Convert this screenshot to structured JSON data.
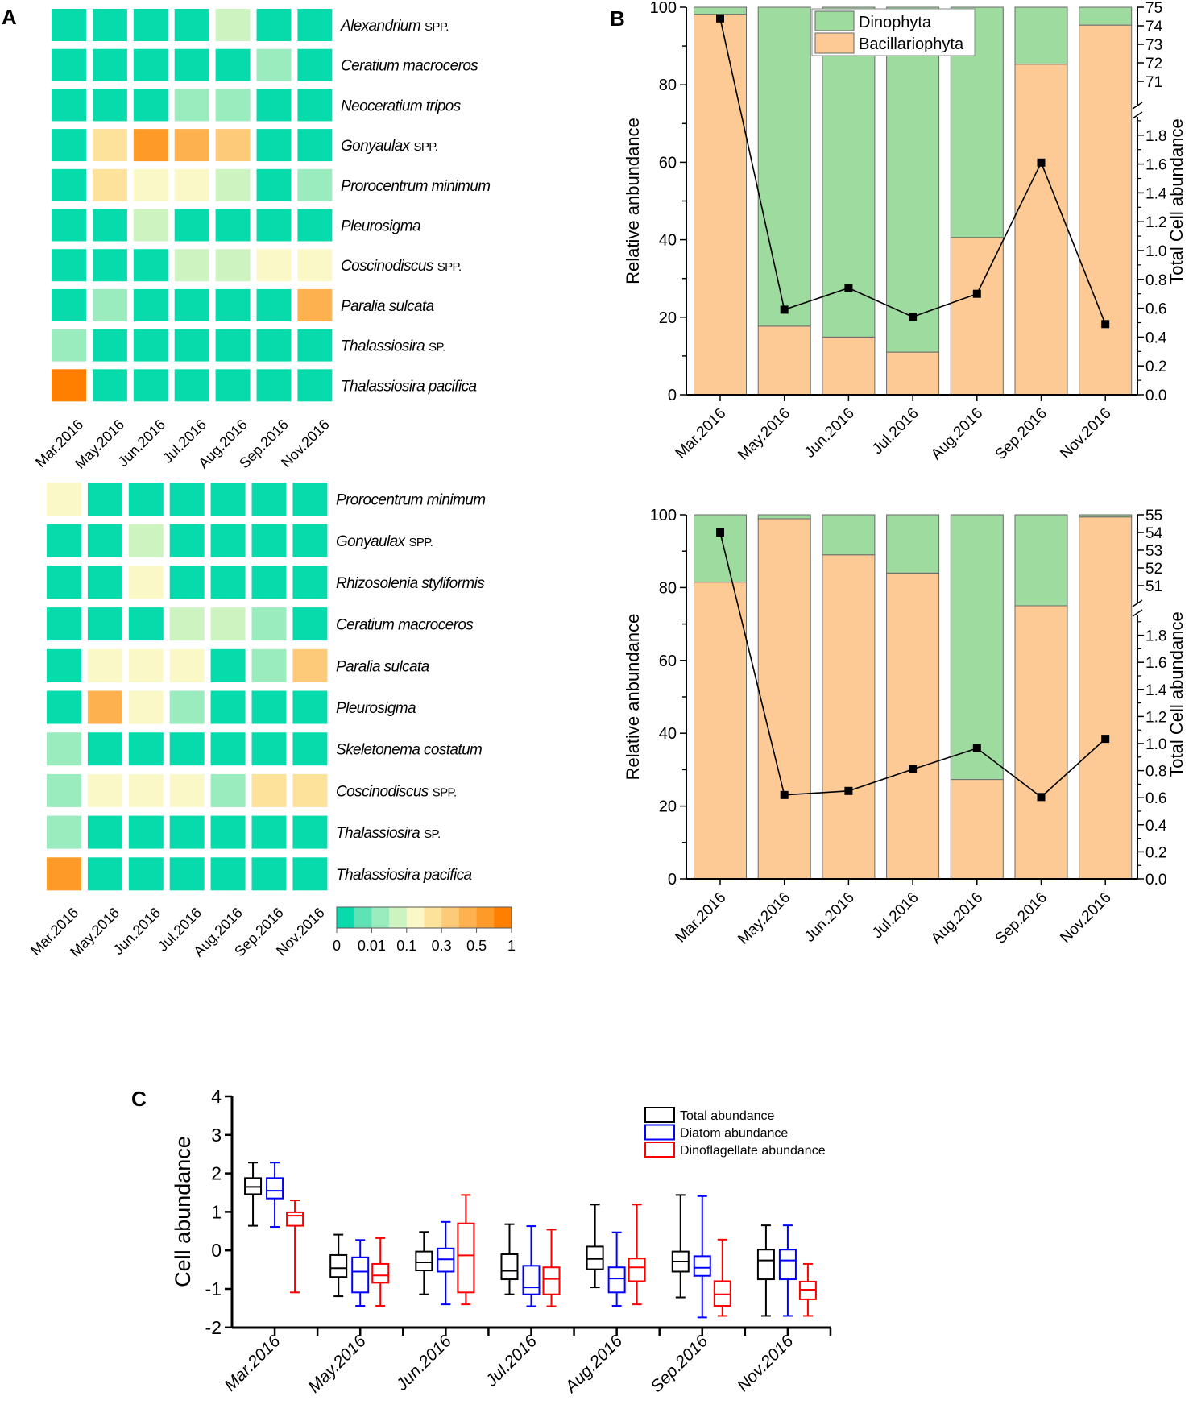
{
  "panel_labels": {
    "a": "A",
    "b": "B",
    "c": "C"
  },
  "palette": [
    "#07dbab",
    "#5fe3b5",
    "#9aebbd",
    "#cdf3c1",
    "#fbf8c7",
    "#fde29c",
    "#fdca79",
    "#fdb24f",
    "#fe9a28",
    "#ff8000"
  ],
  "chart_data": [
    {
      "type": "heatmap",
      "value_kind": "color level (0-9) on the shared colour scale",
      "columns": [
        "Mar.2016",
        "May.2016",
        "Jun.2016",
        "Jul.2016",
        "Aug.2016",
        "Sep.2016",
        "Nov.2016"
      ],
      "rows": [
        {
          "name": "Alexandrium",
          "suffix": "SPP.",
          "values": [
            0,
            0,
            0,
            0,
            3,
            0,
            0
          ]
        },
        {
          "name": "Ceratium macroceros",
          "suffix": "",
          "values": [
            0,
            0,
            0,
            0,
            0,
            2,
            0
          ]
        },
        {
          "name": "Neoceratium tripos",
          "suffix": "",
          "values": [
            0,
            0,
            0,
            2,
            2,
            0,
            0
          ]
        },
        {
          "name": "Gonyaulax",
          "suffix": "SPP.",
          "values": [
            0,
            5,
            8,
            7,
            6,
            0,
            0
          ]
        },
        {
          "name": "Prorocentrum minimum",
          "suffix": "",
          "values": [
            0,
            5,
            4,
            4,
            3,
            0,
            2
          ]
        },
        {
          "name": "Pleurosigma",
          "suffix": "",
          "values": [
            0,
            0,
            3,
            0,
            0,
            0,
            0
          ]
        },
        {
          "name": "Coscinodiscus",
          "suffix": "SPP.",
          "values": [
            0,
            0,
            0,
            3,
            3,
            4,
            4
          ]
        },
        {
          "name": "Paralia sulcata",
          "suffix": "",
          "values": [
            0,
            2,
            0,
            0,
            0,
            0,
            7
          ]
        },
        {
          "name": "Thalassiosira",
          "suffix": "SP.",
          "values": [
            2,
            0,
            0,
            0,
            0,
            0,
            0
          ]
        },
        {
          "name": "Thalassiosira pacifica",
          "suffix": "",
          "values": [
            9,
            0,
            0,
            0,
            0,
            0,
            0
          ]
        }
      ]
    },
    {
      "type": "heatmap",
      "value_kind": "color level (0-9) on the shared colour scale",
      "columns": [
        "Mar.2016",
        "May.2016",
        "Jun.2016",
        "Jul.2016",
        "Aug.2016",
        "Sep.2016",
        "Nov.2016"
      ],
      "rows": [
        {
          "name": "Prorocentrum minimum",
          "suffix": "",
          "values": [
            4,
            0,
            0,
            0,
            0,
            0,
            0
          ]
        },
        {
          "name": "Gonyaulax",
          "suffix": "SPP.",
          "values": [
            0,
            0,
            3,
            0,
            0,
            0,
            0
          ]
        },
        {
          "name": "Rhizosolenia styliformis",
          "suffix": "",
          "values": [
            0,
            0,
            4,
            0,
            0,
            0,
            0
          ]
        },
        {
          "name": "Ceratium macroceros",
          "suffix": "",
          "values": [
            0,
            0,
            0,
            3,
            3,
            2,
            0
          ]
        },
        {
          "name": "Paralia sulcata",
          "suffix": "",
          "values": [
            0,
            4,
            4,
            4,
            0,
            2,
            6
          ]
        },
        {
          "name": "Pleurosigma",
          "suffix": "",
          "values": [
            0,
            7,
            4,
            2,
            0,
            0,
            0
          ]
        },
        {
          "name": "Skeletonema costatum",
          "suffix": "",
          "values": [
            2,
            0,
            0,
            0,
            0,
            0,
            0
          ]
        },
        {
          "name": "Coscinodiscus",
          "suffix": "SPP.",
          "values": [
            2,
            4,
            4,
            4,
            2,
            5,
            5
          ]
        },
        {
          "name": "Thalassiosira",
          "suffix": "SP.",
          "values": [
            2,
            0,
            0,
            0,
            0,
            0,
            0
          ]
        },
        {
          "name": "Thalassiosira pacifica",
          "suffix": "",
          "values": [
            8,
            0,
            0,
            0,
            0,
            0,
            0
          ]
        }
      ],
      "colorbar": {
        "tick_labels": [
          "0",
          "0.01",
          "0.1",
          "0.3",
          "0.5",
          "1"
        ],
        "levels": 10
      }
    },
    {
      "type": "bar",
      "stacked": true,
      "categories": [
        "Mar.2016",
        "May.2016",
        "Jun.2016",
        "Jul.2016",
        "Aug.2016",
        "Sep.2016",
        "Nov.2016"
      ],
      "series": [
        {
          "name": "Bacillariophyta",
          "color": "#fdca96",
          "values": [
            98.2,
            17.7,
            14.9,
            11.0,
            40.6,
            85.3,
            95.4
          ]
        },
        {
          "name": "Dinophyta",
          "color": "#9edb9e",
          "values": [
            1.8,
            82.3,
            85.1,
            89.0,
            59.4,
            14.7,
            4.6
          ]
        }
      ],
      "line": {
        "axis": "right",
        "values": [
          74.4,
          0.59,
          0.74,
          0.54,
          0.7,
          1.61,
          0.49
        ]
      },
      "ylabel": "Relative anbundance",
      "ylim": [
        0,
        100
      ],
      "yticks": [
        "0",
        "20",
        "40",
        "60",
        "80",
        "100"
      ],
      "y2label": "Total Cell abundance",
      "y2_broken": true,
      "y2_lower_ticks": [
        "0.0",
        "0.2",
        "0.4",
        "0.6",
        "0.8",
        "1.0",
        "1.2",
        "1.4",
        "1.6",
        "1.8"
      ],
      "y2_upper_ticks": [
        "71",
        "72",
        "73",
        "74",
        "75"
      ],
      "legend": [
        "Dinophyta",
        "Bacillariophyta"
      ],
      "legend_position": "top-center"
    },
    {
      "type": "bar",
      "stacked": true,
      "categories": [
        "Mar.2016",
        "May.2016",
        "Jun.2016",
        "Jul.2016",
        "Aug.2016",
        "Sep.2016",
        "Nov.2016"
      ],
      "series": [
        {
          "name": "Bacillariophyta",
          "color": "#fdca96",
          "values": [
            81.5,
            98.9,
            89.0,
            84.0,
            27.3,
            75.0,
            99.4
          ]
        },
        {
          "name": "Dinophyta",
          "color": "#9edb9e",
          "values": [
            18.5,
            1.1,
            11.0,
            16.0,
            72.7,
            25.0,
            0.6
          ]
        }
      ],
      "line": {
        "axis": "right",
        "values": [
          54.0,
          0.62,
          0.65,
          0.81,
          0.965,
          0.605,
          1.035
        ]
      },
      "ylabel": "Relative anbundance",
      "ylim": [
        0,
        100
      ],
      "yticks": [
        "0",
        "20",
        "40",
        "60",
        "80",
        "100"
      ],
      "y2label": "Total Cell abundance",
      "y2_broken": true,
      "y2_lower_ticks": [
        "0.0",
        "0.2",
        "0.4",
        "0.6",
        "0.8",
        "1.0",
        "1.2",
        "1.4",
        "1.6",
        "1.8"
      ],
      "y2_upper_ticks": [
        "51",
        "52",
        "53",
        "54",
        "55"
      ]
    },
    {
      "type": "boxplot",
      "categories": [
        "Mar.2016",
        "May.2016",
        "Jun.2016",
        "Jul.2016",
        "Aug.2016",
        "Sep.2016",
        "Nov.2016"
      ],
      "ylabel": "Cell abundance",
      "ylim": [
        -2,
        4
      ],
      "yticks": [
        "-2",
        "-1",
        "0",
        "1",
        "2",
        "3",
        "4"
      ],
      "legend_position": "top-right",
      "series": [
        {
          "name": "Total abundance",
          "color": "#000000",
          "boxes": [
            [
              0.64,
              1.46,
              1.65,
              1.88,
              2.28
            ],
            [
              -1.19,
              -0.69,
              -0.46,
              -0.12,
              0.41
            ],
            [
              -1.14,
              -0.52,
              -0.31,
              -0.03,
              0.48
            ],
            [
              -1.14,
              -0.75,
              -0.53,
              -0.1,
              0.68
            ],
            [
              -0.96,
              -0.49,
              -0.22,
              0.1,
              1.19
            ],
            [
              -1.22,
              -0.55,
              -0.29,
              -0.03,
              1.44
            ],
            [
              -1.7,
              -0.75,
              -0.26,
              0.02,
              0.65
            ]
          ]
        },
        {
          "name": "Diatom abundance",
          "color": "#0000ff",
          "boxes": [
            [
              0.61,
              1.35,
              1.55,
              1.88,
              2.28
            ],
            [
              -1.44,
              -1.09,
              -0.55,
              -0.18,
              0.27
            ],
            [
              -1.4,
              -0.55,
              -0.23,
              0.05,
              0.74
            ],
            [
              -1.45,
              -1.14,
              -0.96,
              -0.4,
              0.63
            ],
            [
              -1.44,
              -1.09,
              -0.73,
              -0.44,
              0.47
            ],
            [
              -1.74,
              -0.66,
              -0.45,
              -0.15,
              1.41
            ],
            [
              -1.7,
              -0.75,
              -0.26,
              0.02,
              0.65
            ]
          ]
        },
        {
          "name": "Dinoflagellate abundance",
          "color": "#ff0000",
          "boxes": [
            [
              -1.09,
              0.64,
              0.9,
              0.99,
              1.3
            ],
            [
              -1.44,
              -0.84,
              -0.65,
              -0.35,
              0.32
            ],
            [
              -1.4,
              -1.09,
              -0.13,
              0.7,
              1.44
            ],
            [
              -1.45,
              -1.14,
              -0.74,
              -0.44,
              0.54
            ],
            [
              -1.4,
              -0.8,
              -0.44,
              -0.21,
              1.19
            ],
            [
              -1.7,
              -1.44,
              -1.14,
              -0.8,
              0.28
            ],
            [
              -1.7,
              -1.27,
              -1.02,
              -0.81,
              -0.35
            ]
          ]
        }
      ]
    }
  ]
}
